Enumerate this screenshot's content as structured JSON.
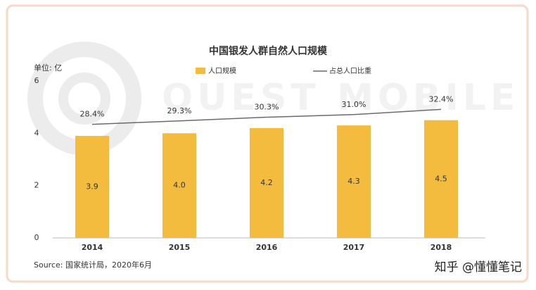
{
  "chart_data": {
    "type": "bar",
    "title": "中国银发人群自然人口规模",
    "unit_label": "单位: 亿",
    "source": "Source:  国家统计局，2020年6月",
    "watermark": "QUEST MOBILE",
    "credit": "知乎 @懂懂笔记",
    "categories": [
      "2014",
      "2015",
      "2016",
      "2017",
      "2018"
    ],
    "series": [
      {
        "name": "人口规模",
        "type": "bar",
        "color": "#f3bc3e",
        "axis": "y",
        "values": [
          3.9,
          4.0,
          4.2,
          4.3,
          4.5
        ],
        "value_labels": [
          "3.9",
          "4.0",
          "4.2",
          "4.3",
          "4.5"
        ]
      },
      {
        "name": "占总人口比重",
        "type": "line",
        "color": "#6b6b6b",
        "axis": "y2",
        "values": [
          28.4,
          29.3,
          30.3,
          31.0,
          32.4
        ],
        "value_labels": [
          "28.4%",
          "29.3%",
          "30.3%",
          "31.0%",
          "32.4%"
        ]
      }
    ],
    "ylim": [
      0,
      6
    ],
    "yticks": [
      0,
      2,
      4,
      6
    ],
    "y2lim": [
      -2,
      40
    ],
    "grid": false
  }
}
